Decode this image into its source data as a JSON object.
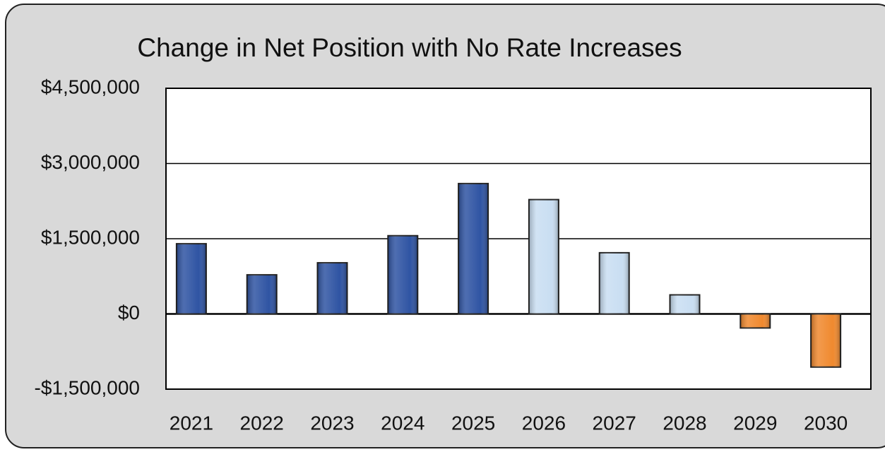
{
  "chart_data": {
    "type": "bar",
    "title": "Change in Net Position with No Rate Increases",
    "categories": [
      "2021",
      "2022",
      "2023",
      "2024",
      "2025",
      "2026",
      "2027",
      "2028",
      "2029",
      "2030"
    ],
    "values": [
      1400000,
      780000,
      1020000,
      1560000,
      2600000,
      2280000,
      1220000,
      380000,
      -280000,
      -1060000
    ],
    "colors": [
      "#2f54a3",
      "#2f54a3",
      "#2f54a3",
      "#2f54a3",
      "#2f54a3",
      "#c9def2",
      "#c9def2",
      "#c9def2",
      "#f0892e",
      "#f0892e"
    ],
    "ylim": [
      -1500000,
      4500000
    ],
    "yticks": [
      {
        "value": -1500000,
        "label": "-$1,500,000"
      },
      {
        "value": 0,
        "label": "$0"
      },
      {
        "value": 1500000,
        "label": "$1,500,000"
      },
      {
        "value": 3000000,
        "label": "$3,000,000"
      },
      {
        "value": 4500000,
        "label": "$4,500,000"
      }
    ],
    "grid": true
  }
}
